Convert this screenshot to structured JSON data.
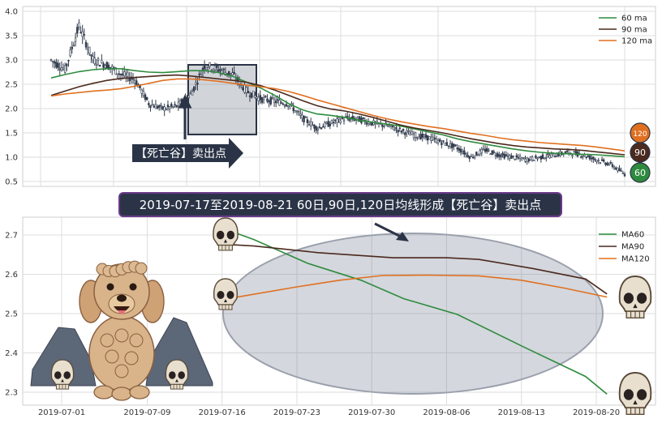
{
  "colors": {
    "ma60": "#2e8b3e",
    "ma90": "#4a2a1e",
    "ma120": "#e07020",
    "candle": "#333d4e"
  },
  "chart_data": [
    {
      "type": "line",
      "panel": "price",
      "ylim": [
        0.4,
        4.1
      ],
      "yticks": [
        "0.5",
        "1.0",
        "1.5",
        "2.0",
        "2.5",
        "3.0",
        "3.5",
        "4.0"
      ],
      "grid": true,
      "legend_placement": "top-right",
      "series": [
        {
          "name": "60 ma",
          "color": "#2e8b3e",
          "y": [
            2.63,
            2.7,
            2.76,
            2.8,
            2.82,
            2.82,
            2.78,
            2.75,
            2.74,
            2.76,
            2.78,
            2.78,
            2.74,
            2.66,
            2.54,
            2.42,
            2.27,
            2.1,
            1.97,
            1.89,
            1.86,
            1.82,
            1.76,
            1.72,
            1.68,
            1.64,
            1.58,
            1.52,
            1.46,
            1.38,
            1.32,
            1.27,
            1.22,
            1.17,
            1.13,
            1.1,
            1.08,
            1.07,
            1.06,
            1.05,
            1.03,
            1.01
          ]
        },
        {
          "name": "90 ma",
          "color": "#4a2a1e",
          "y": [
            2.27,
            2.36,
            2.45,
            2.52,
            2.58,
            2.62,
            2.64,
            2.66,
            2.68,
            2.69,
            2.67,
            2.64,
            2.61,
            2.58,
            2.54,
            2.47,
            2.38,
            2.27,
            2.16,
            2.06,
            1.99,
            1.95,
            1.89,
            1.82,
            1.74,
            1.66,
            1.6,
            1.55,
            1.5,
            1.44,
            1.38,
            1.33,
            1.28,
            1.24,
            1.21,
            1.19,
            1.17,
            1.16,
            1.14,
            1.11,
            1.08,
            1.05
          ]
        },
        {
          "name": "120 ma",
          "color": "#e07020",
          "y": [
            2.26,
            2.3,
            2.33,
            2.36,
            2.38,
            2.41,
            2.46,
            2.52,
            2.58,
            2.61,
            2.61,
            2.59,
            2.56,
            2.52,
            2.48,
            2.45,
            2.41,
            2.35,
            2.27,
            2.18,
            2.1,
            2.02,
            1.94,
            1.86,
            1.79,
            1.73,
            1.68,
            1.63,
            1.59,
            1.54,
            1.49,
            1.45,
            1.4,
            1.36,
            1.33,
            1.3,
            1.28,
            1.26,
            1.24,
            1.21,
            1.17,
            1.13
          ]
        },
        {
          "name": "",
          "kind": "close",
          "y": [
            3.0,
            2.8,
            3.7,
            3.0,
            2.9,
            2.7,
            2.6,
            2.1,
            2.0,
            2.05,
            2.3,
            2.9,
            2.8,
            2.7,
            2.35,
            2.2,
            2.15,
            2.1,
            1.8,
            1.6,
            1.7,
            1.8,
            1.78,
            1.7,
            1.65,
            1.55,
            1.45,
            1.4,
            1.3,
            1.2,
            1.0,
            1.15,
            1.05,
            1.0,
            0.95,
            1.0,
            1.05,
            1.1,
            1.05,
            0.95,
            0.85,
            0.65
          ]
        }
      ],
      "badges": [
        "120",
        "90",
        "60"
      ],
      "annotation": "【死亡谷】卖出点"
    },
    {
      "type": "line",
      "panel": "ma",
      "ylim": [
        2.27,
        2.73
      ],
      "yticks": [
        "2.3",
        "2.4",
        "2.5",
        "2.6",
        "2.7"
      ],
      "xticks": [
        "2019-07-01",
        "2019-07-09",
        "2019-07-16",
        "2019-07-23",
        "2019-07-30",
        "2019-08-06",
        "2019-08-13",
        "2019-08-20"
      ],
      "grid": true,
      "legend_placement": "top-right",
      "series": [
        {
          "name": "MA60",
          "color": "#2e8b3e",
          "x": [
            "2019-07-17",
            "2019-07-19",
            "2019-07-24",
            "2019-07-29",
            "2019-08-02",
            "2019-08-07",
            "2019-08-13",
            "2019-08-19",
            "2019-08-21"
          ],
          "y": [
            2.708,
            2.688,
            2.628,
            2.585,
            2.538,
            2.498,
            2.418,
            2.34,
            2.295
          ]
        },
        {
          "name": "MA90",
          "color": "#4a2a1e",
          "x": [
            "2019-07-17",
            "2019-07-19",
            "2019-07-25",
            "2019-08-01",
            "2019-08-06",
            "2019-08-09",
            "2019-08-14",
            "2019-08-19",
            "2019-08-21"
          ],
          "y": [
            2.675,
            2.672,
            2.655,
            2.642,
            2.642,
            2.638,
            2.615,
            2.588,
            2.55
          ]
        },
        {
          "name": "MA120",
          "color": "#e07020",
          "x": [
            "2019-07-17",
            "2019-07-23",
            "2019-07-27",
            "2019-07-31",
            "2019-08-04",
            "2019-08-09",
            "2019-08-13",
            "2019-08-17",
            "2019-08-21"
          ],
          "y": [
            2.54,
            2.568,
            2.585,
            2.597,
            2.598,
            2.596,
            2.585,
            2.565,
            2.542
          ]
        }
      ]
    }
  ],
  "banner": "2019-07-17至2019-08-21 60日,90日,120日均线形成【死亡谷】卖出点"
}
